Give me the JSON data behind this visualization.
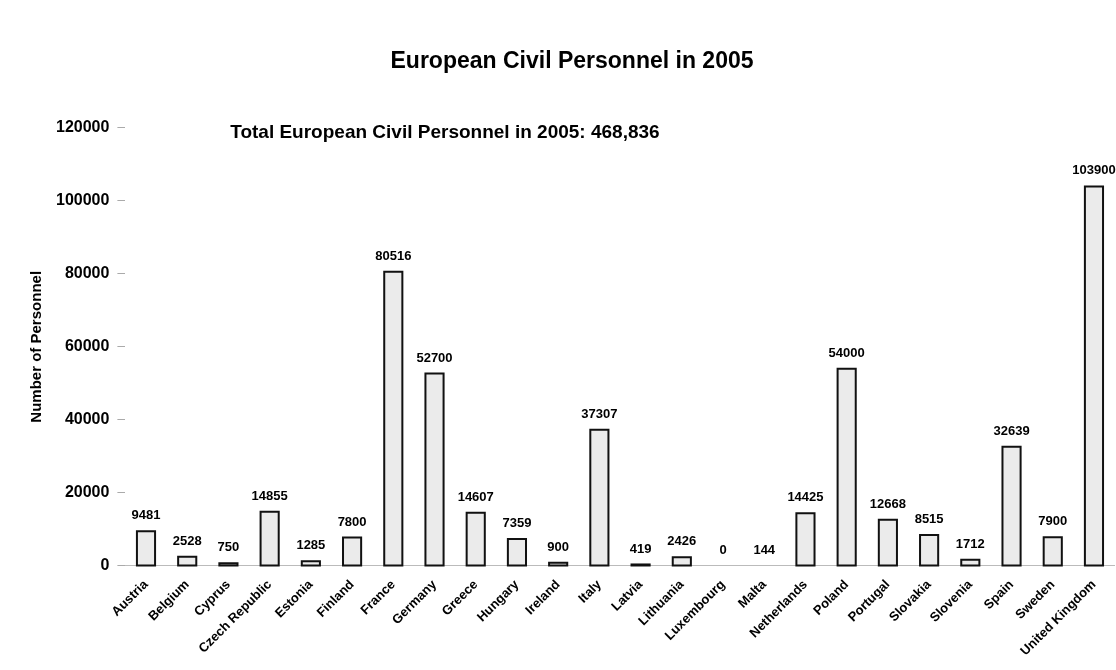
{
  "chart_data": {
    "type": "bar",
    "title": "European Civil Personnel in 2005",
    "ylabel": "Number of Personnel",
    "annotations": [
      "Total European Civil Personnel in 2005: 468,836"
    ],
    "categories": [
      "Austria",
      "Belgium",
      "Cyprus",
      "Czech Republic",
      "Estonia",
      "Finland",
      "France",
      "Germany",
      "Greece",
      "Hungary",
      "Ireland",
      "Italy",
      "Latvia",
      "Lithuania",
      "Luxembourg",
      "Malta",
      "Netherlands",
      "Poland",
      "Portugal",
      "Slovakia",
      "Slovenia",
      "Spain",
      "Sweden",
      "United Kingdom"
    ],
    "values": [
      9481,
      2528,
      750,
      14855,
      1285,
      7800,
      80516,
      52700,
      14607,
      7359,
      900,
      37307,
      419,
      2426,
      0,
      144,
      14425,
      54000,
      12668,
      8515,
      1712,
      32639,
      7900,
      103900
    ],
    "color": "#ebebeb",
    "ylim": [
      0,
      120000
    ],
    "yticks": [
      0,
      20000,
      40000,
      60000,
      80000,
      100000,
      120000
    ],
    "data_labels": true
  }
}
